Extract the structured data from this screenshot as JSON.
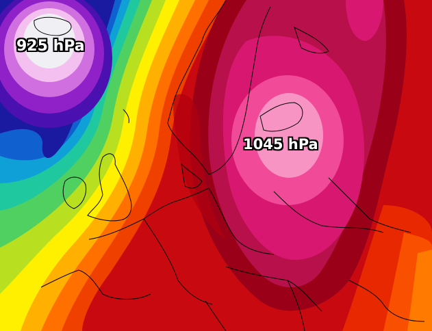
{
  "map": {
    "low_label": "925 hPa",
    "high_label": "1045 hPa"
  },
  "colors": {
    "low_center": "#f0f0f4",
    "low_ring_1": "#f4c0f0",
    "low_ring_2": "#d070e0",
    "low_ring_3": "#9020c8",
    "low_ring_4": "#4a10b0",
    "low_ring_5": "#1a1aa0",
    "low_ring_6": "#1060d0",
    "low_ring_7": "#10a0d8",
    "low_ring_8": "#20c8a0",
    "low_ring_9": "#50d060",
    "low_ring_10": "#b8e020",
    "low_ring_11": "#fff000",
    "low_ring_12": "#ffb000",
    "low_ring_13": "#ff7000",
    "low_ring_14": "#f04000",
    "background_red": "#c80a10",
    "dark_red": "#9a0018",
    "high_outer": "#b8104a",
    "high_mid": "#d81870",
    "high_inner": "#f04a98",
    "high_center": "#f894c4",
    "coastline": "#000000"
  }
}
